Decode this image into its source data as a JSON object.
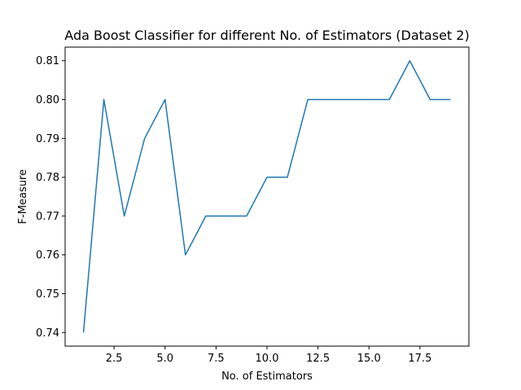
{
  "chart_data": {
    "type": "line",
    "title": "Ada Boost Classifier for different No. of Estimators (Dataset 2)",
    "xlabel": "No. of Estimators",
    "ylabel": "F-Measure",
    "xlim": [
      0.1,
      19.9
    ],
    "ylim": [
      0.7365,
      0.8135
    ],
    "x_ticks": [
      2.5,
      5.0,
      7.5,
      10.0,
      12.5,
      15.0,
      17.5
    ],
    "x_tick_labels": [
      "2.5",
      "5.0",
      "7.5",
      "10.0",
      "12.5",
      "15.0",
      "17.5"
    ],
    "y_ticks": [
      0.74,
      0.75,
      0.76,
      0.77,
      0.78,
      0.79,
      0.8,
      0.81
    ],
    "y_tick_labels": [
      "0.74",
      "0.75",
      "0.76",
      "0.77",
      "0.78",
      "0.79",
      "0.80",
      "0.81"
    ],
    "grid": false,
    "series": [
      {
        "color": "#1f77b4",
        "x": [
          1,
          2,
          3,
          4,
          5,
          6,
          7,
          8,
          9,
          10,
          11,
          12,
          13,
          14,
          15,
          16,
          17,
          18,
          19
        ],
        "y": [
          0.74,
          0.8,
          0.77,
          0.79,
          0.8,
          0.76,
          0.77,
          0.77,
          0.77,
          0.78,
          0.78,
          0.8,
          0.8,
          0.8,
          0.8,
          0.8,
          0.81,
          0.8,
          0.8
        ]
      }
    ]
  }
}
